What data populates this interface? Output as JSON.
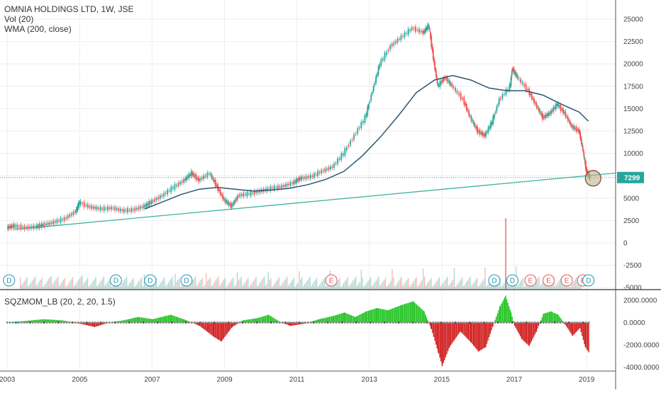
{
  "header": {
    "title": "OMNIA HOLDINGS LTD, 1W, JSE",
    "vol_label": "Vol (20)",
    "wma_label": "WMA (200, close)",
    "sqz_label": "SQZMOM_LB (20, 2, 20, 1.5)"
  },
  "colors": {
    "up": "#26a69a",
    "down": "#ef5350",
    "wma": "#2b5672",
    "trend": "#3bb3a3",
    "price_label_bg": "#26a69a",
    "hline": "#26a69a",
    "sqz_pos": "#22c322",
    "sqz_neg": "#d11a1a",
    "grid": "#eeeeee"
  },
  "chart_data": [
    {
      "type": "line",
      "name": "price",
      "ylim": [
        -5000,
        26000
      ],
      "xlim": [
        2002.8,
        2019.8
      ],
      "y_ticks": [
        "25000",
        "22500",
        "20000",
        "17500",
        "15000",
        "12500",
        "10000",
        "7500",
        "5000",
        "2500",
        "0",
        "-2500",
        "-5000"
      ],
      "y_tick_values": [
        25000,
        22500,
        20000,
        17500,
        15000,
        12500,
        10000,
        7500,
        5000,
        2500,
        0,
        -2500,
        -5000
      ],
      "x_ticks": [
        "2003",
        "2005",
        "2007",
        "2009",
        "2011",
        "2013",
        "2015",
        "2017",
        "2019"
      ],
      "x_tick_values": [
        2003,
        2005,
        2007,
        2009,
        2011,
        2013,
        2015,
        2017,
        2019
      ],
      "last_price_label": "7299",
      "last_price": 7299,
      "price_points": [
        [
          2003.0,
          1700
        ],
        [
          2003.2,
          1900
        ],
        [
          2003.5,
          1700
        ],
        [
          2003.8,
          1800
        ],
        [
          2004.0,
          2000
        ],
        [
          2004.3,
          2300
        ],
        [
          2004.6,
          2700
        ],
        [
          2004.9,
          3500
        ],
        [
          2005.0,
          4500
        ],
        [
          2005.3,
          4000
        ],
        [
          2005.6,
          3800
        ],
        [
          2005.9,
          3900
        ],
        [
          2006.2,
          3600
        ],
        [
          2006.5,
          3700
        ],
        [
          2006.8,
          4100
        ],
        [
          2007.0,
          4600
        ],
        [
          2007.3,
          5300
        ],
        [
          2007.6,
          6200
        ],
        [
          2007.9,
          7000
        ],
        [
          2008.1,
          7800
        ],
        [
          2008.3,
          7000
        ],
        [
          2008.6,
          7800
        ],
        [
          2008.8,
          6300
        ],
        [
          2009.0,
          4800
        ],
        [
          2009.2,
          4100
        ],
        [
          2009.4,
          5300
        ],
        [
          2009.7,
          5500
        ],
        [
          2010.0,
          5800
        ],
        [
          2010.3,
          6100
        ],
        [
          2010.6,
          6300
        ],
        [
          2010.9,
          6700
        ],
        [
          2011.1,
          7200
        ],
        [
          2011.4,
          7400
        ],
        [
          2011.7,
          8000
        ],
        [
          2012.0,
          8500
        ],
        [
          2012.3,
          10000
        ],
        [
          2012.6,
          12000
        ],
        [
          2012.9,
          14000
        ],
        [
          2013.1,
          17000
        ],
        [
          2013.3,
          20000
        ],
        [
          2013.6,
          22000
        ],
        [
          2013.9,
          23000
        ],
        [
          2014.2,
          24000
        ],
        [
          2014.5,
          23500
        ],
        [
          2014.65,
          24300
        ],
        [
          2014.8,
          20000
        ],
        [
          2014.9,
          17500
        ],
        [
          2015.1,
          18500
        ],
        [
          2015.3,
          17500
        ],
        [
          2015.6,
          16000
        ],
        [
          2015.8,
          14000
        ],
        [
          2016.0,
          12500
        ],
        [
          2016.2,
          12000
        ],
        [
          2016.4,
          13500
        ],
        [
          2016.6,
          16000
        ],
        [
          2016.9,
          17500
        ],
        [
          2016.95,
          19500
        ],
        [
          2017.1,
          18500
        ],
        [
          2017.4,
          17000
        ],
        [
          2017.6,
          15500
        ],
        [
          2017.8,
          14000
        ],
        [
          2018.0,
          14500
        ],
        [
          2018.2,
          15500
        ],
        [
          2018.4,
          14500
        ],
        [
          2018.6,
          13000
        ],
        [
          2018.8,
          12500
        ],
        [
          2018.9,
          10500
        ],
        [
          2019.0,
          8000
        ],
        [
          2019.1,
          7299
        ]
      ],
      "wma_points": [
        [
          2006.8,
          3800
        ],
        [
          2007.3,
          4600
        ],
        [
          2007.8,
          5400
        ],
        [
          2008.3,
          6000
        ],
        [
          2008.8,
          6200
        ],
        [
          2009.3,
          6000
        ],
        [
          2009.8,
          5800
        ],
        [
          2010.3,
          5900
        ],
        [
          2010.8,
          6100
        ],
        [
          2011.3,
          6500
        ],
        [
          2011.8,
          7100
        ],
        [
          2012.3,
          8000
        ],
        [
          2012.8,
          9700
        ],
        [
          2013.3,
          11800
        ],
        [
          2013.8,
          14200
        ],
        [
          2014.3,
          16800
        ],
        [
          2014.8,
          18200
        ],
        [
          2015.3,
          18700
        ],
        [
          2015.8,
          18200
        ],
        [
          2016.3,
          17300
        ],
        [
          2016.8,
          17000
        ],
        [
          2017.3,
          17000
        ],
        [
          2017.8,
          16500
        ],
        [
          2018.3,
          15500
        ],
        [
          2018.8,
          14600
        ],
        [
          2019.05,
          13600
        ]
      ],
      "trend_line": [
        [
          2003.2,
          1500
        ],
        [
          2019.8,
          7800
        ]
      ],
      "events": [
        {
          "label": "D",
          "x": 2003.05,
          "kind": "dividend"
        },
        {
          "label": "D",
          "x": 2006.0,
          "kind": "dividend"
        },
        {
          "label": "D",
          "x": 2006.95,
          "kind": "dividend"
        },
        {
          "label": "D",
          "x": 2007.95,
          "kind": "dividend"
        },
        {
          "label": "E",
          "x": 2011.95,
          "kind": "earnings"
        },
        {
          "label": "D",
          "x": 2016.45,
          "kind": "dividend"
        },
        {
          "label": "D",
          "x": 2016.95,
          "kind": "dividend"
        },
        {
          "label": "E",
          "x": 2017.45,
          "kind": "earnings"
        },
        {
          "label": "E",
          "x": 2017.95,
          "kind": "earnings"
        },
        {
          "label": "E",
          "x": 2018.45,
          "kind": "earnings"
        },
        {
          "label": "E",
          "x": 2018.9,
          "kind": "earnings"
        },
        {
          "label": "D",
          "x": 2019.05,
          "kind": "dividend"
        }
      ]
    },
    {
      "type": "bar",
      "name": "SQZMOM",
      "ylim": [
        -4300,
        2600
      ],
      "y_ticks": [
        "2000.0000",
        "0.0000",
        "-2000.0000",
        "-4000.0000"
      ],
      "y_tick_values": [
        2000,
        0,
        -2000,
        -4000
      ],
      "points": [
        [
          2003.0,
          0
        ],
        [
          2003.5,
          150
        ],
        [
          2004.0,
          300
        ],
        [
          2004.5,
          200
        ],
        [
          2005.0,
          -100
        ],
        [
          2005.4,
          -400
        ],
        [
          2005.8,
          0
        ],
        [
          2006.2,
          200
        ],
        [
          2006.6,
          500
        ],
        [
          2007.0,
          300
        ],
        [
          2007.5,
          700
        ],
        [
          2007.9,
          250
        ],
        [
          2008.3,
          -300
        ],
        [
          2008.7,
          -1300
        ],
        [
          2008.9,
          -1700
        ],
        [
          2009.2,
          -400
        ],
        [
          2009.5,
          200
        ],
        [
          2009.9,
          400
        ],
        [
          2010.2,
          700
        ],
        [
          2010.5,
          100
        ],
        [
          2010.8,
          -300
        ],
        [
          2011.2,
          -100
        ],
        [
          2011.6,
          300
        ],
        [
          2012.0,
          600
        ],
        [
          2012.3,
          900
        ],
        [
          2012.6,
          500
        ],
        [
          2012.9,
          1000
        ],
        [
          2013.2,
          1300
        ],
        [
          2013.5,
          1100
        ],
        [
          2013.9,
          1600
        ],
        [
          2014.2,
          1900
        ],
        [
          2014.5,
          1000
        ],
        [
          2014.7,
          -600
        ],
        [
          2014.9,
          -2800
        ],
        [
          2015.0,
          -3900
        ],
        [
          2015.2,
          -2200
        ],
        [
          2015.5,
          -800
        ],
        [
          2015.8,
          -1800
        ],
        [
          2016.0,
          -2600
        ],
        [
          2016.2,
          -2200
        ],
        [
          2016.4,
          -300
        ],
        [
          2016.6,
          1500
        ],
        [
          2016.75,
          2400
        ],
        [
          2016.9,
          900
        ],
        [
          2017.0,
          -300
        ],
        [
          2017.2,
          -1500
        ],
        [
          2017.4,
          -2100
        ],
        [
          2017.6,
          -800
        ],
        [
          2017.8,
          800
        ],
        [
          2018.0,
          1000
        ],
        [
          2018.2,
          700
        ],
        [
          2018.4,
          -200
        ],
        [
          2018.6,
          -1200
        ],
        [
          2018.8,
          -500
        ],
        [
          2018.95,
          -2200
        ],
        [
          2019.05,
          -2700
        ]
      ]
    }
  ]
}
